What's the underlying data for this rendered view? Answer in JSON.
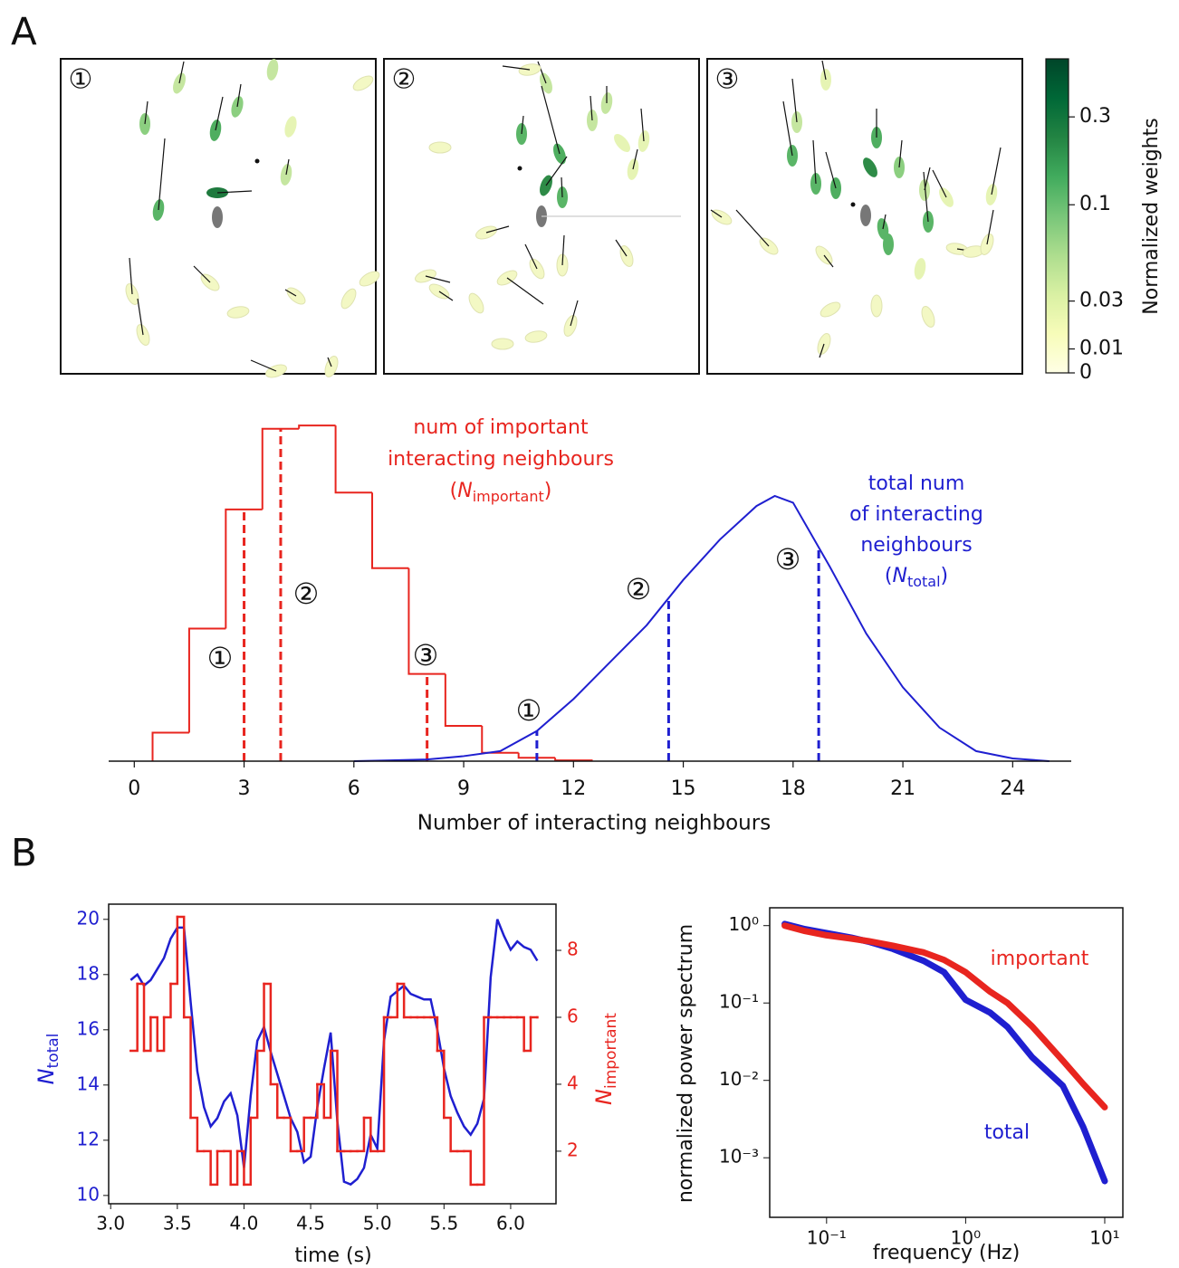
{
  "figure": {
    "panel_labels": [
      "A",
      "B"
    ]
  },
  "chart_data": [
    {
      "type": "snapshots",
      "panel_labels": [
        "①",
        "②",
        "③"
      ],
      "colorbar": {
        "label": "Normalized weights",
        "scale": "symlog",
        "ylim": [
          0,
          0.62
        ],
        "yticks": [
          0,
          0.01,
          0.03,
          0.1,
          0.3
        ],
        "colormap": [
          "#ffffe5",
          "#f7fcb9",
          "#d9f0a3",
          "#addd8e",
          "#78c679",
          "#41ab5d",
          "#238443",
          "#006837",
          "#004529"
        ]
      }
    },
    {
      "type": "histogram",
      "xlabel": "Number of interacting neighbours",
      "xlim": [
        -0.7,
        25.6
      ],
      "xticks": [
        0,
        3,
        6,
        9,
        12,
        15,
        18,
        21,
        24
      ],
      "ylim": [
        0,
        0.22
      ],
      "series": [
        {
          "name": "important",
          "color": "#e8251f",
          "bins": [
            0.5,
            1.5,
            2.5,
            3.5,
            4.5,
            5.5,
            6.5,
            7.5,
            8.5,
            9.5,
            10.5,
            11.5,
            12.5
          ],
          "values": [
            0.017,
            0.079,
            0.15,
            0.198,
            0.2,
            0.16,
            0.115,
            0.052,
            0.021,
            0.005,
            0.002,
            0.0005
          ],
          "markers": {
            "x": [
              3,
              4,
              8
            ],
            "labels": [
              "①",
              "②",
              "③"
            ]
          },
          "annotation": {
            "lines": [
              "num of important",
              "interacting neighbours"
            ],
            "open": "(",
            "symbol": "N",
            "subscript": "important",
            "close": ")"
          }
        },
        {
          "name": "total",
          "color": "#1f1fd0",
          "x": [
            6,
            7,
            8,
            9,
            10,
            11,
            12,
            13,
            14,
            15,
            16,
            17,
            17.5,
            18,
            19,
            20,
            21,
            22,
            23,
            24,
            25
          ],
          "values": [
            0,
            0.0005,
            0.001,
            0.003,
            0.006,
            0.018,
            0.037,
            0.059,
            0.081,
            0.108,
            0.132,
            0.152,
            0.158,
            0.154,
            0.116,
            0.076,
            0.044,
            0.02,
            0.006,
            0.0016,
            0
          ],
          "markers": {
            "x": [
              11,
              14.6,
              18.7
            ],
            "labels": [
              "①",
              "②",
              "③"
            ]
          },
          "annotation": {
            "lines": [
              "total num",
              "of interacting",
              "neighbours"
            ],
            "open": "(",
            "symbol": "N",
            "subscript": "total",
            "close": ")"
          }
        }
      ]
    },
    {
      "type": "line",
      "xlabel": "time (s)",
      "ylabel": {
        "symbol": "N",
        "subscript": "total"
      },
      "y2label": {
        "symbol": "N",
        "subscript": "important"
      },
      "xlim": [
        2.985,
        6.34
      ],
      "xticks": [
        {
          "value": 3,
          "label": "3.0"
        },
        {
          "value": 3.5,
          "label": "3.5"
        },
        {
          "value": 4,
          "label": "4.0"
        },
        {
          "value": 4.5,
          "label": "4.5"
        },
        {
          "value": 5,
          "label": "5.0"
        },
        {
          "value": 5.5,
          "label": "5.5"
        },
        {
          "value": 6,
          "label": "6.0"
        }
      ],
      "ylim": [
        9.7,
        20.55
      ],
      "yticks": [
        10,
        12,
        14,
        16,
        18,
        20
      ],
      "y2lim": [
        0.43,
        9.38
      ],
      "y2ticks": [
        2,
        4,
        6,
        8
      ],
      "x": [
        3.15,
        3.2,
        3.25,
        3.3,
        3.35,
        3.4,
        3.45,
        3.5,
        3.55,
        3.6,
        3.65,
        3.7,
        3.75,
        3.8,
        3.85,
        3.9,
        3.95,
        4.0,
        4.05,
        4.1,
        4.15,
        4.2,
        4.25,
        4.3,
        4.35,
        4.4,
        4.45,
        4.5,
        4.55,
        4.6,
        4.65,
        4.7,
        4.75,
        4.8,
        4.85,
        4.9,
        4.95,
        5.0,
        5.05,
        5.1,
        5.15,
        5.2,
        5.25,
        5.3,
        5.35,
        5.4,
        5.45,
        5.5,
        5.55,
        5.6,
        5.65,
        5.7,
        5.75,
        5.8,
        5.85,
        5.9,
        5.95,
        6.0,
        6.05,
        6.1,
        6.15,
        6.2
      ],
      "series": [
        {
          "color": "#1f1fd0",
          "values": [
            17.8,
            18.0,
            17.6,
            17.8,
            18.2,
            18.6,
            19.3,
            19.7,
            19.7,
            17.0,
            14.5,
            13.2,
            12.5,
            12.8,
            13.4,
            13.7,
            12.9,
            11.0,
            13.6,
            15.6,
            16.1,
            15.2,
            14.4,
            13.6,
            12.8,
            12.3,
            11.2,
            11.4,
            13.2,
            14.6,
            15.9,
            12.7,
            10.5,
            10.4,
            10.6,
            11.0,
            12.2,
            11.7,
            15.6,
            17.2,
            17.4,
            17.6,
            17.3,
            17.2,
            17.1,
            17.1,
            16.0,
            14.6,
            13.6,
            13.0,
            12.5,
            12.2,
            12.6,
            13.5,
            17.9,
            20.0,
            19.4,
            18.9,
            19.2,
            19.0,
            18.9,
            18.5
          ]
        },
        {
          "color": "#e8251f",
          "axis": "y2",
          "step": true,
          "values": [
            5,
            7,
            5,
            6,
            5,
            6,
            7,
            9,
            6,
            3,
            2,
            2,
            1,
            2,
            2,
            1,
            2,
            1,
            3,
            5,
            7,
            4,
            3,
            3,
            2,
            2,
            3,
            3,
            4,
            3,
            5,
            2,
            2,
            2,
            2,
            3,
            2,
            2,
            6,
            6,
            7,
            6,
            6,
            6,
            6,
            6,
            5,
            3,
            2,
            2,
            2,
            1,
            1,
            6,
            6,
            6,
            6,
            6,
            6,
            5,
            6,
            6
          ]
        }
      ]
    },
    {
      "type": "loglog",
      "xlabel": "frequency (Hz)",
      "ylabel": "normalized power spectrum",
      "xscale": "log",
      "yscale": "log",
      "xlim": [
        0.039,
        13.5
      ],
      "xticks": [
        {
          "value": 0.1,
          "label": "10⁻¹"
        },
        {
          "value": 1,
          "label": "10⁰"
        },
        {
          "value": 10,
          "label": "10¹"
        }
      ],
      "ylim": [
        0.00017,
        1.7
      ],
      "yticks": [
        {
          "value": 0.001,
          "label": "10⁻³"
        },
        {
          "value": 0.01,
          "label": "10⁻²"
        },
        {
          "value": 0.1,
          "label": "10⁻¹"
        },
        {
          "value": 1,
          "label": "10⁰"
        }
      ],
      "x": [
        0.05,
        0.07,
        0.1,
        0.15,
        0.2,
        0.3,
        0.5,
        0.7,
        1,
        1.5,
        2,
        3,
        5,
        7,
        10
      ],
      "series": [
        {
          "name": "total",
          "color": "#1f1fd0",
          "values": [
            1.05,
            0.9,
            0.8,
            0.7,
            0.62,
            0.5,
            0.35,
            0.25,
            0.11,
            0.075,
            0.049,
            0.02,
            0.0085,
            0.0025,
            0.0005
          ]
        },
        {
          "name": "important",
          "color": "#e8251f",
          "values": [
            1.0,
            0.85,
            0.75,
            0.68,
            0.63,
            0.55,
            0.45,
            0.36,
            0.25,
            0.14,
            0.1,
            0.05,
            0.018,
            0.009,
            0.0045
          ]
        }
      ]
    }
  ]
}
